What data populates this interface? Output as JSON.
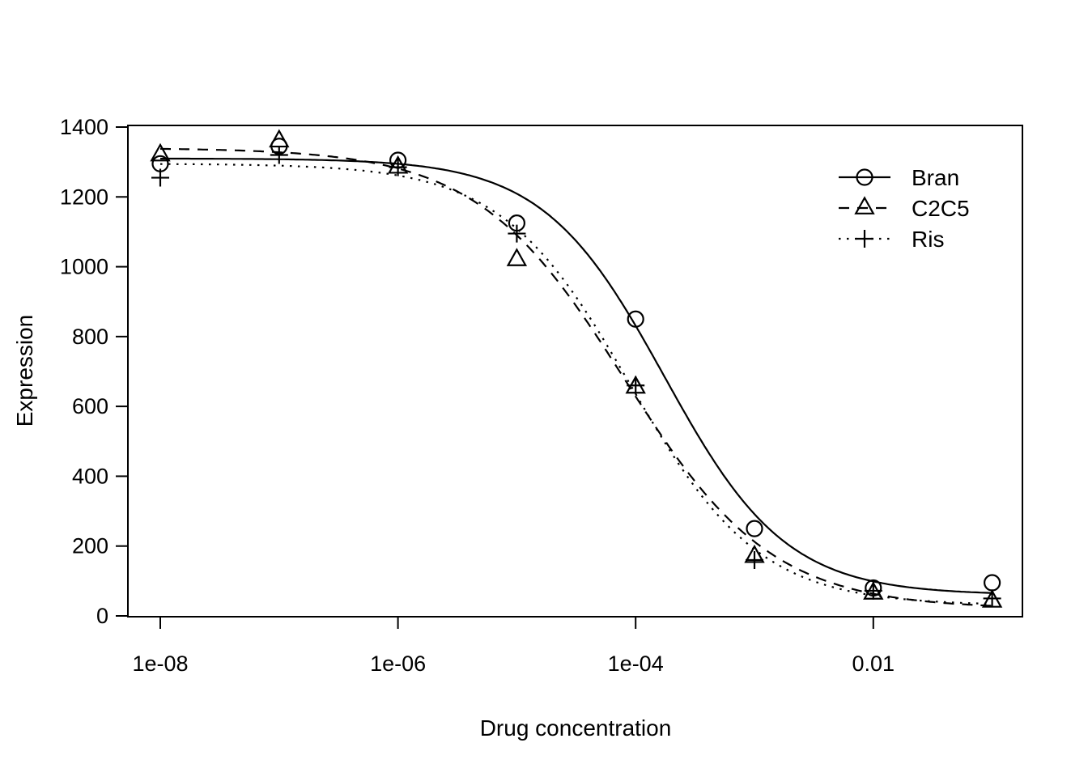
{
  "colors": {
    "foreground": "#000000",
    "background": "#ffffff"
  },
  "chart_data": {
    "type": "line",
    "subtype": "dose-response scatter points with fitted log-logistic curves",
    "title": "",
    "xlabel": "Drug concentration",
    "ylabel": "Expression",
    "x_scale": "log10",
    "xlim": [
      5e-09,
      0.18
    ],
    "ylim": [
      0,
      1400
    ],
    "grid": false,
    "box": true,
    "legend_position": "top-right",
    "x_ticks": [
      {
        "value": 1e-08,
        "label": "1e-08"
      },
      {
        "value": 1e-06,
        "label": "1e-06"
      },
      {
        "value": 0.0001,
        "label": "1e-04"
      },
      {
        "value": 0.01,
        "label": "0.01"
      }
    ],
    "y_ticks": [
      {
        "value": 0,
        "label": "0"
      },
      {
        "value": 200,
        "label": "200"
      },
      {
        "value": 400,
        "label": "400"
      },
      {
        "value": 600,
        "label": "600"
      },
      {
        "value": 800,
        "label": "800"
      },
      {
        "value": 1000,
        "label": "1000"
      },
      {
        "value": 1200,
        "label": "1200"
      },
      {
        "value": 1400,
        "label": "1400"
      }
    ],
    "x": [
      1e-08,
      1e-07,
      1e-06,
      1e-05,
      0.0001,
      0.001,
      0.01,
      0.1
    ],
    "series": [
      {
        "name": "Bran",
        "marker": "circle",
        "line_style": "solid",
        "values": [
          1295,
          1345,
          1305,
          1125,
          850,
          250,
          80,
          95
        ],
        "fit": {
          "model": "four-parameter log-logistic",
          "bottom": 60,
          "top": 1310,
          "ec50": 0.000175,
          "hill": 0.85
        }
      },
      {
        "name": "C2C5",
        "marker": "triangle",
        "line_style": "dashed",
        "values": [
          1320,
          1360,
          1285,
          1020,
          655,
          170,
          65,
          42
        ],
        "fit": {
          "model": "four-parameter log-logistic",
          "bottom": 20,
          "top": 1340,
          "ec50": 8e-05,
          "hill": 0.7
        }
      },
      {
        "name": "Ris",
        "marker": "plus",
        "line_style": "dotted",
        "values": [
          1255,
          1320,
          1285,
          1095,
          660,
          160,
          72,
          50
        ],
        "fit": {
          "model": "four-parameter log-logistic",
          "bottom": 30,
          "top": 1295,
          "ec50": 9e-05,
          "hill": 0.8
        }
      }
    ],
    "legend": {
      "entries": [
        "Bran",
        "C2C5",
        "Ris"
      ]
    }
  }
}
